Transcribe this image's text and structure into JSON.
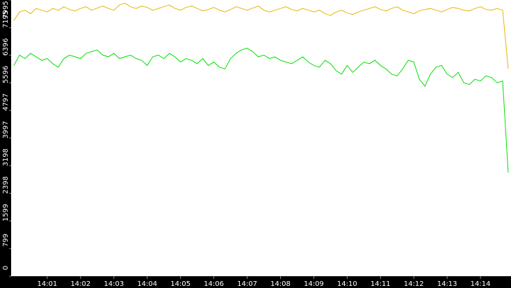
{
  "chart_data": {
    "type": "line",
    "categories": [
      null,
      null,
      null,
      null,
      null,
      null,
      "14:01",
      null,
      null,
      null,
      null,
      null,
      "14:02",
      null,
      null,
      null,
      null,
      null,
      "14:03",
      null,
      null,
      null,
      null,
      null,
      "14:04",
      null,
      null,
      null,
      null,
      null,
      "14:05",
      null,
      null,
      null,
      null,
      null,
      "14:06",
      null,
      null,
      null,
      null,
      null,
      "14:07",
      null,
      null,
      null,
      null,
      null,
      "14:08",
      null,
      null,
      null,
      null,
      null,
      "14:09",
      null,
      null,
      null,
      null,
      null,
      "14:10",
      null,
      null,
      null,
      null,
      null,
      "14:11",
      null,
      null,
      null,
      null,
      null,
      "14:12",
      null,
      null,
      null,
      null,
      null,
      "14:13",
      null,
      null,
      null,
      null,
      null,
      "14:14",
      null,
      null,
      null,
      null,
      null
    ],
    "series": [
      {
        "color": "#e8b400",
        "values": [
          7400,
          7650,
          7700,
          7600,
          7750,
          7700,
          7650,
          7750,
          7700,
          7800,
          7720,
          7680,
          7750,
          7800,
          7700,
          7760,
          7820,
          7750,
          7700,
          7850,
          7900,
          7800,
          7750,
          7820,
          7780,
          7700,
          7750,
          7800,
          7850,
          7750,
          7700,
          7780,
          7820,
          7750,
          7680,
          7720,
          7780,
          7700,
          7650,
          7720,
          7800,
          7750,
          7700,
          7760,
          7820,
          7700,
          7650,
          7700,
          7750,
          7800,
          7720,
          7680,
          7750,
          7700,
          7650,
          7700,
          7600,
          7550,
          7650,
          7700,
          7620,
          7580,
          7650,
          7700,
          7750,
          7800,
          7720,
          7680,
          7750,
          7800,
          7700,
          7650,
          7600,
          7680,
          7720,
          7750,
          7700,
          7650,
          7720,
          7780,
          7750,
          7700,
          7680,
          7750,
          7800,
          7720,
          7700,
          7750,
          7700,
          6000
        ]
      },
      {
        "color": "#00e000",
        "values": [
          6100,
          6400,
          6300,
          6450,
          6350,
          6250,
          6300,
          6150,
          6050,
          6300,
          6400,
          6350,
          6300,
          6450,
          6500,
          6550,
          6400,
          6350,
          6450,
          6300,
          6350,
          6400,
          6300,
          6250,
          6100,
          6350,
          6400,
          6300,
          6450,
          6350,
          6200,
          6300,
          6250,
          6150,
          6300,
          6100,
          6200,
          6050,
          6000,
          6300,
          6450,
          6550,
          6600,
          6500,
          6350,
          6400,
          6300,
          6350,
          6250,
          6200,
          6150,
          6250,
          6350,
          6200,
          6100,
          6050,
          6250,
          6150,
          5950,
          5850,
          6100,
          5900,
          6050,
          6200,
          6150,
          6250,
          6100,
          6000,
          5850,
          5800,
          6000,
          6250,
          6200,
          5700,
          5500,
          5850,
          6050,
          6100,
          5850,
          5750,
          5900,
          5600,
          5550,
          5700,
          5650,
          5800,
          5750,
          5600,
          5650,
          3000
        ]
      }
    ],
    "ylim": [
      0,
      7995
    ],
    "yticks": [
      0,
      799,
      1599,
      2398,
      3198,
      3997,
      4797,
      5596,
      6396,
      7195,
      7995
    ]
  }
}
